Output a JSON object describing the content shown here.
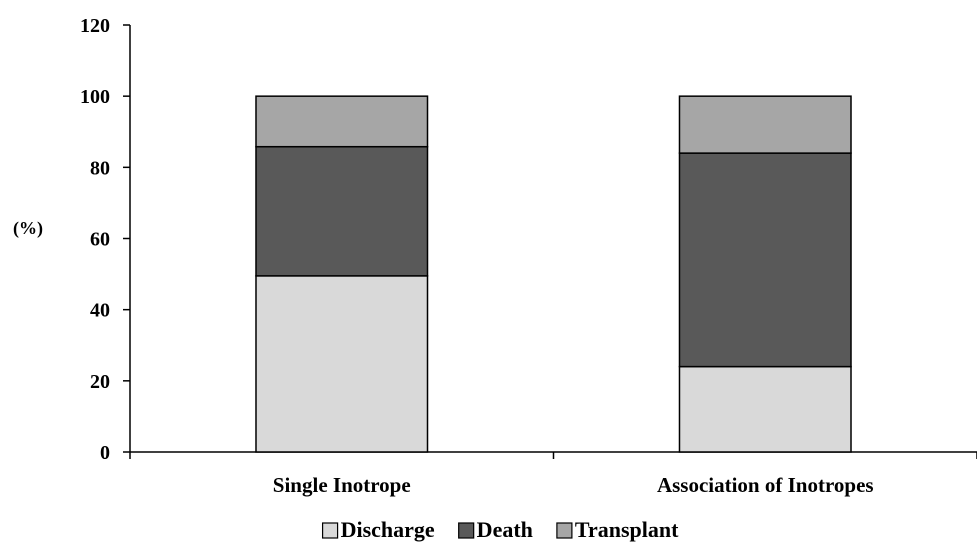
{
  "chart_data": {
    "type": "bar",
    "stacked": true,
    "title": "",
    "xlabel": "",
    "ylabel": "(%)",
    "ylim": [
      0,
      120
    ],
    "yticks": [
      0,
      20,
      40,
      60,
      80,
      100,
      120
    ],
    "categories": [
      "Single Inotrope",
      "Association of Inotropes"
    ],
    "series": [
      {
        "name": "Discharge",
        "values": [
          49.5,
          24
        ],
        "color": "#d9d9d9"
      },
      {
        "name": "Death",
        "values": [
          36.3,
          60
        ],
        "color": "#595959"
      },
      {
        "name": "Transplant",
        "values": [
          14.2,
          16
        ],
        "color": "#a6a6a6"
      }
    ],
    "grid": false,
    "legend_position": "bottom"
  }
}
